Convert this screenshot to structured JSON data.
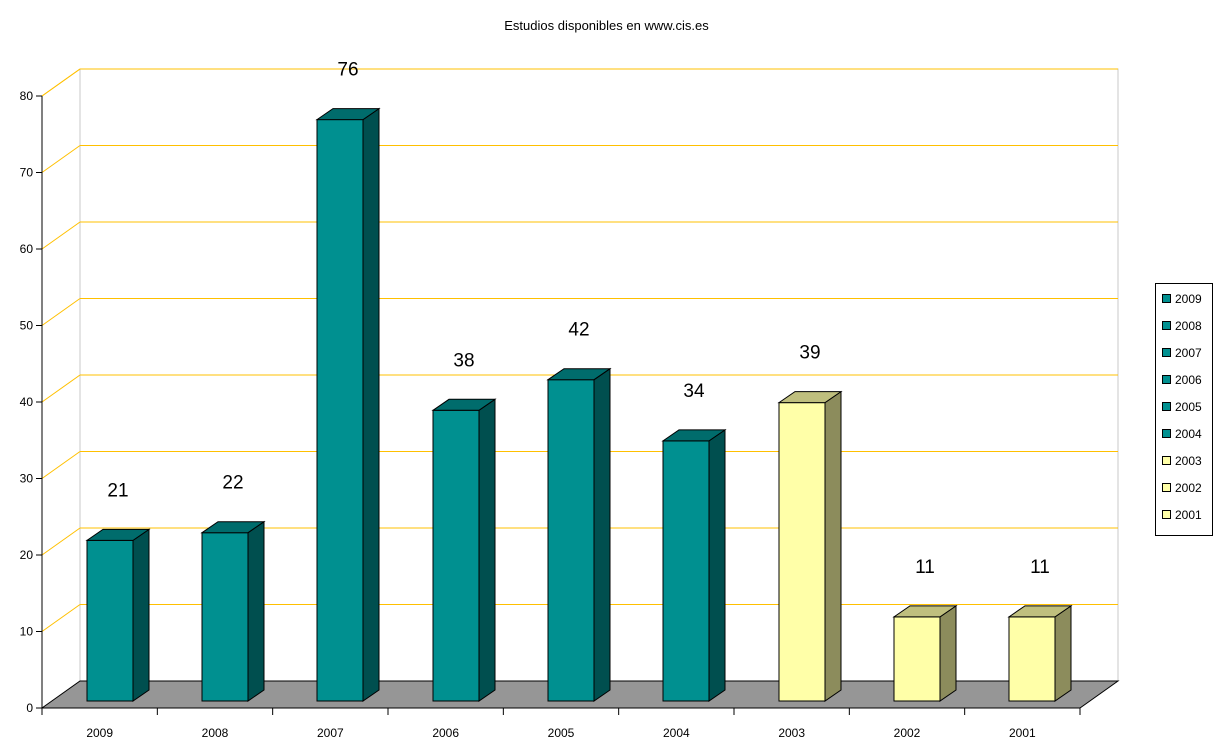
{
  "chart_data": {
    "type": "bar",
    "title": "Estudios disponibles en www.cis.es",
    "categories": [
      "2009",
      "2008",
      "2007",
      "2006",
      "2005",
      "2004",
      "2003",
      "2002",
      "2001"
    ],
    "values": [
      21,
      22,
      76,
      38,
      42,
      34,
      39,
      11,
      11
    ],
    "data_labels": [
      "21",
      "22",
      "76",
      "38",
      "42",
      "34",
      "39",
      "11",
      "11"
    ],
    "bar_colors": [
      "#009090",
      "#009090",
      "#009090",
      "#009090",
      "#009090",
      "#009090",
      "#FFFFA8",
      "#FFFFA8",
      "#FFFFA8"
    ],
    "ylim": [
      0,
      80
    ],
    "yticks": [
      "0",
      "10",
      "20",
      "30",
      "40",
      "50",
      "60",
      "70",
      "80"
    ],
    "grid": true,
    "gridline_color": "#FFC000",
    "floor_color": "#969696",
    "legend": {
      "placement": "right",
      "entries": [
        "2009",
        "2008",
        "2007",
        "2006",
        "2005",
        "2004",
        "2003",
        "2002",
        "2001"
      ]
    },
    "xlabel": "",
    "ylabel": ""
  }
}
